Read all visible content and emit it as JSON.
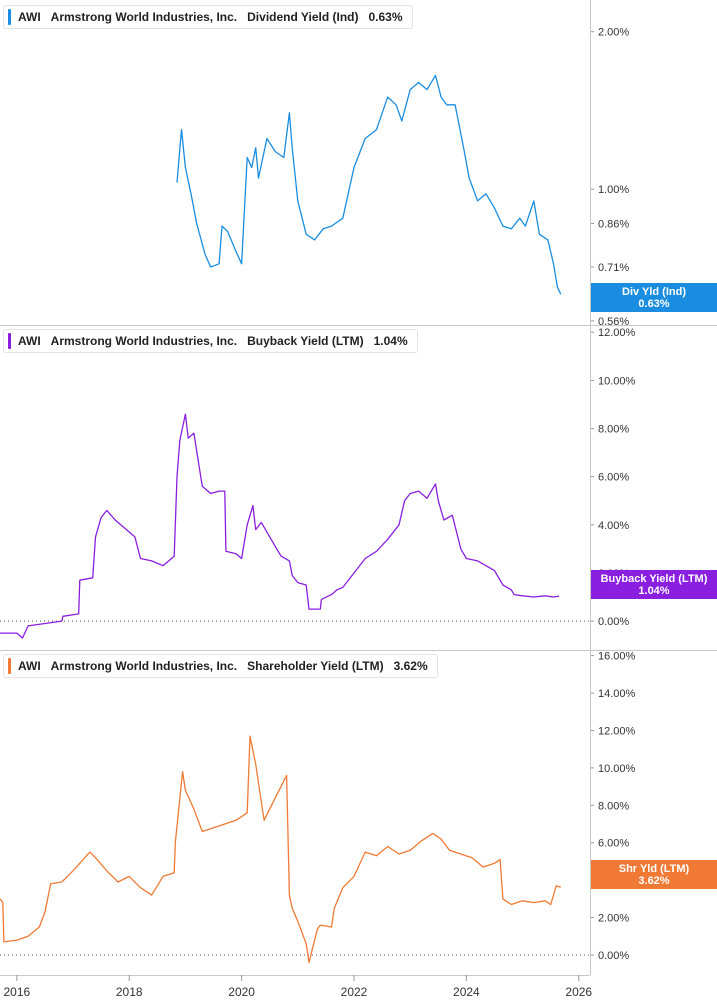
{
  "colors": {
    "p1": "#1a8de0",
    "p2": "#8a1fe0",
    "p3": "#f07a35"
  },
  "chart_data": [
    {
      "type": "line",
      "ticker": "AWI",
      "company": "Armstrong World Industries, Inc.",
      "metric": "Dividend Yield (Ind)",
      "value": "0.63%",
      "badge_label": "Div Yld (Ind)",
      "badge_value": "0.63%",
      "scale": "log",
      "ylim": [
        0.55,
        2.3
      ],
      "yticks": [
        2.0,
        1.0,
        0.86,
        0.71,
        0.56
      ],
      "ytick_labels": [
        "2.00%",
        "1.00%",
        "0.86%",
        "0.71%",
        "0.56%"
      ],
      "color": "#1a8de0",
      "x": [
        2018.85,
        2018.93,
        2019.0,
        2019.1,
        2019.2,
        2019.35,
        2019.45,
        2019.6,
        2019.65,
        2019.75,
        2019.9,
        2020.0,
        2020.1,
        2020.18,
        2020.25,
        2020.3,
        2020.45,
        2020.6,
        2020.75,
        2020.85,
        2020.9,
        2021.0,
        2021.15,
        2021.3,
        2021.45,
        2021.6,
        2021.8,
        2022.0,
        2022.2,
        2022.4,
        2022.6,
        2022.75,
        2022.85,
        2023.0,
        2023.15,
        2023.3,
        2023.45,
        2023.55,
        2023.65,
        2023.8,
        2023.95,
        2024.05,
        2024.2,
        2024.35,
        2024.5,
        2024.65,
        2024.8,
        2024.95,
        2025.05,
        2025.2,
        2025.3,
        2025.45,
        2025.55,
        2025.62,
        2025.68
      ],
      "y": [
        1.03,
        1.3,
        1.1,
        0.98,
        0.86,
        0.75,
        0.71,
        0.72,
        0.85,
        0.83,
        0.76,
        0.72,
        1.15,
        1.1,
        1.2,
        1.05,
        1.25,
        1.18,
        1.15,
        1.4,
        1.2,
        0.95,
        0.82,
        0.8,
        0.84,
        0.85,
        0.88,
        1.1,
        1.25,
        1.3,
        1.5,
        1.45,
        1.35,
        1.55,
        1.6,
        1.55,
        1.65,
        1.5,
        1.45,
        1.45,
        1.2,
        1.05,
        0.95,
        0.98,
        0.92,
        0.85,
        0.84,
        0.88,
        0.85,
        0.95,
        0.82,
        0.8,
        0.72,
        0.65,
        0.63
      ]
    },
    {
      "type": "line",
      "ticker": "AWI",
      "company": "Armstrong World Industries, Inc.",
      "metric": "Buyback Yield (LTM)",
      "value": "1.04%",
      "badge_label": "Buyback Yield (LTM)",
      "badge_value": "1.04%",
      "scale": "linear",
      "ylim": [
        -1.2,
        12.3
      ],
      "yticks": [
        12,
        10,
        8,
        6,
        4,
        2,
        0
      ],
      "ytick_labels": [
        "12.00%",
        "10.00%",
        "8.00%",
        "6.00%",
        "4.00%",
        "2.00%",
        "0.00%"
      ],
      "color": "#8a1fe0",
      "zero_line": 0,
      "x": [
        2015.7,
        2016.0,
        2016.1,
        2016.2,
        2016.5,
        2016.8,
        2016.82,
        2017.1,
        2017.12,
        2017.35,
        2017.4,
        2017.5,
        2017.6,
        2017.75,
        2017.95,
        2018.1,
        2018.2,
        2018.4,
        2018.6,
        2018.8,
        2018.85,
        2018.9,
        2019.0,
        2019.05,
        2019.15,
        2019.3,
        2019.45,
        2019.6,
        2019.7,
        2019.72,
        2019.9,
        2020.0,
        2020.1,
        2020.2,
        2020.25,
        2020.35,
        2020.5,
        2020.7,
        2020.85,
        2020.9,
        2021.0,
        2021.15,
        2021.2,
        2021.4,
        2021.42,
        2021.6,
        2021.7,
        2021.8,
        2022.0,
        2022.2,
        2022.4,
        2022.6,
        2022.8,
        2022.9,
        2023.0,
        2023.15,
        2023.3,
        2023.45,
        2023.5,
        2023.6,
        2023.75,
        2023.9,
        2024.0,
        2024.2,
        2024.35,
        2024.5,
        2024.65,
        2024.8,
        2024.85,
        2025.0,
        2025.2,
        2025.4,
        2025.55,
        2025.65
      ],
      "y": [
        -0.5,
        -0.5,
        -0.7,
        -0.2,
        -0.1,
        0.0,
        0.2,
        0.3,
        1.7,
        1.8,
        3.5,
        4.3,
        4.6,
        4.2,
        3.8,
        3.5,
        2.6,
        2.5,
        2.3,
        2.7,
        6.0,
        7.5,
        8.6,
        7.6,
        7.8,
        5.6,
        5.3,
        5.4,
        5.4,
        2.9,
        2.8,
        2.6,
        4.0,
        4.8,
        3.8,
        4.1,
        3.5,
        2.7,
        2.5,
        1.9,
        1.6,
        1.5,
        0.5,
        0.5,
        0.9,
        1.1,
        1.3,
        1.4,
        2.0,
        2.6,
        2.9,
        3.4,
        4.0,
        5.0,
        5.3,
        5.4,
        5.1,
        5.7,
        5.0,
        4.2,
        4.4,
        3.0,
        2.6,
        2.5,
        2.3,
        2.1,
        1.5,
        1.3,
        1.1,
        1.05,
        1.0,
        1.05,
        1.0,
        1.04
      ]
    },
    {
      "type": "line",
      "ticker": "AWI",
      "company": "Armstrong World Industries, Inc.",
      "metric": "Shareholder Yield (LTM)",
      "value": "3.62%",
      "badge_label": "Shr Yld (LTM)",
      "badge_value": "3.62%",
      "scale": "linear",
      "ylim": [
        -0.8,
        16.3
      ],
      "yticks": [
        16,
        14,
        12,
        10,
        8,
        6,
        4,
        2,
        0
      ],
      "ytick_labels": [
        "16.00%",
        "14.00%",
        "12.00%",
        "10.00%",
        "8.00%",
        "6.00%",
        "4.00%",
        "2.00%",
        "0.00%"
      ],
      "color": "#f07a35",
      "zero_line": 0,
      "x": [
        2015.7,
        2015.75,
        2015.77,
        2016.0,
        2016.2,
        2016.4,
        2016.5,
        2016.6,
        2016.8,
        2017.0,
        2017.3,
        2017.4,
        2017.6,
        2017.8,
        2018.0,
        2018.2,
        2018.4,
        2018.6,
        2018.8,
        2018.82,
        2018.95,
        2019.0,
        2019.15,
        2019.3,
        2019.5,
        2019.7,
        2019.9,
        2020.1,
        2020.15,
        2020.25,
        2020.4,
        2020.6,
        2020.8,
        2020.85,
        2020.9,
        2021.0,
        2021.15,
        2021.2,
        2021.35,
        2021.4,
        2021.6,
        2021.65,
        2021.8,
        2022.0,
        2022.2,
        2022.4,
        2022.6,
        2022.8,
        2023.0,
        2023.2,
        2023.4,
        2023.55,
        2023.7,
        2023.9,
        2024.1,
        2024.3,
        2024.5,
        2024.6,
        2024.65,
        2024.8,
        2025.0,
        2025.2,
        2025.4,
        2025.5,
        2025.6,
        2025.68
      ],
      "y": [
        3.0,
        2.8,
        0.7,
        0.8,
        1.0,
        1.5,
        2.3,
        3.8,
        3.9,
        4.5,
        5.5,
        5.2,
        4.5,
        3.9,
        4.2,
        3.6,
        3.2,
        4.2,
        4.4,
        6.0,
        9.8,
        8.8,
        7.8,
        6.6,
        6.8,
        7.0,
        7.2,
        7.6,
        11.7,
        10.2,
        7.2,
        8.4,
        9.6,
        3.2,
        2.5,
        1.8,
        0.6,
        -0.4,
        1.4,
        1.6,
        1.5,
        2.5,
        3.6,
        4.2,
        5.5,
        5.3,
        5.8,
        5.4,
        5.6,
        6.1,
        6.5,
        6.2,
        5.6,
        5.4,
        5.2,
        4.7,
        4.9,
        5.1,
        3.0,
        2.7,
        2.9,
        2.8,
        2.9,
        2.7,
        3.7,
        3.62
      ]
    }
  ],
  "x_axis": {
    "ticks": [
      2016,
      2018,
      2020,
      2022,
      2024,
      2026
    ],
    "labels": [
      "2016",
      "2018",
      "2020",
      "2022",
      "2024",
      "2026"
    ],
    "xlim": [
      2015.7,
      2026.2
    ]
  }
}
